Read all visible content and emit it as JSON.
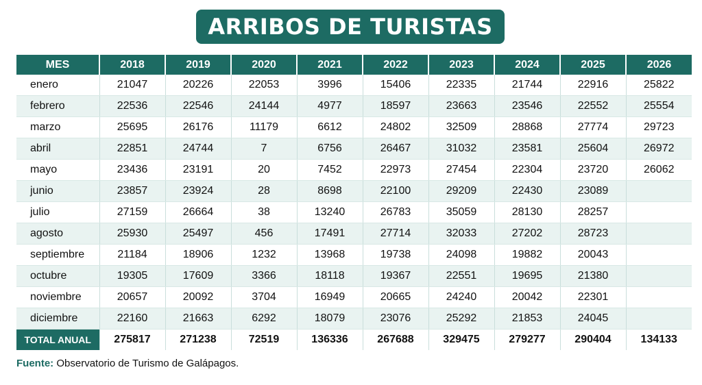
{
  "title": "ARRIBOS DE TURISTAS",
  "header": {
    "month_label": "MES",
    "years": [
      "2018",
      "2019",
      "2020",
      "2021",
      "2022",
      "2023",
      "2024",
      "2025",
      "2026"
    ]
  },
  "rows": [
    {
      "month": "enero",
      "values": [
        "21047",
        "20226",
        "22053",
        "3996",
        "15406",
        "22335",
        "21744",
        "22916",
        "25822"
      ]
    },
    {
      "month": "febrero",
      "values": [
        "22536",
        "22546",
        "24144",
        "4977",
        "18597",
        "23663",
        "23546",
        "22552",
        "25554"
      ]
    },
    {
      "month": "marzo",
      "values": [
        "25695",
        "26176",
        "11179",
        "6612",
        "24802",
        "32509",
        "28868",
        "27774",
        "29723"
      ]
    },
    {
      "month": "abril",
      "values": [
        "22851",
        "24744",
        "7",
        "6756",
        "26467",
        "31032",
        "23581",
        "25604",
        "26972"
      ]
    },
    {
      "month": "mayo",
      "values": [
        "23436",
        "23191",
        "20",
        "7452",
        "22973",
        "27454",
        "22304",
        "23720",
        "26062"
      ]
    },
    {
      "month": "junio",
      "values": [
        "23857",
        "23924",
        "28",
        "8698",
        "22100",
        "29209",
        "22430",
        "23089",
        ""
      ]
    },
    {
      "month": "julio",
      "values": [
        "27159",
        "26664",
        "38",
        "13240",
        "26783",
        "35059",
        "28130",
        "28257",
        ""
      ]
    },
    {
      "month": "agosto",
      "values": [
        "25930",
        "25497",
        "456",
        "17491",
        "27714",
        "32033",
        "27202",
        "28723",
        ""
      ]
    },
    {
      "month": "septiembre",
      "values": [
        "21184",
        "18906",
        "1232",
        "13968",
        "19738",
        "24098",
        "19882",
        "20043",
        ""
      ]
    },
    {
      "month": "octubre",
      "values": [
        "19305",
        "17609",
        "3366",
        "18118",
        "19367",
        "22551",
        "19695",
        "21380",
        ""
      ]
    },
    {
      "month": "noviembre",
      "values": [
        "20657",
        "20092",
        "3704",
        "16949",
        "20665",
        "24240",
        "20042",
        "22301",
        ""
      ]
    },
    {
      "month": "diciembre",
      "values": [
        "22160",
        "21663",
        "6292",
        "18079",
        "23076",
        "25292",
        "21853",
        "24045",
        ""
      ]
    }
  ],
  "total": {
    "label": "TOTAL ANUAL",
    "values": [
      "275817",
      "271238",
      "72519",
      "136336",
      "267688",
      "329475",
      "279277",
      "290404",
      "134133"
    ]
  },
  "source": {
    "label": "Fuente:",
    "text": "Observatorio de Turismo de Galápagos."
  },
  "colors": {
    "accent": "#1d6b63",
    "stripe": "#e9f3f1"
  }
}
